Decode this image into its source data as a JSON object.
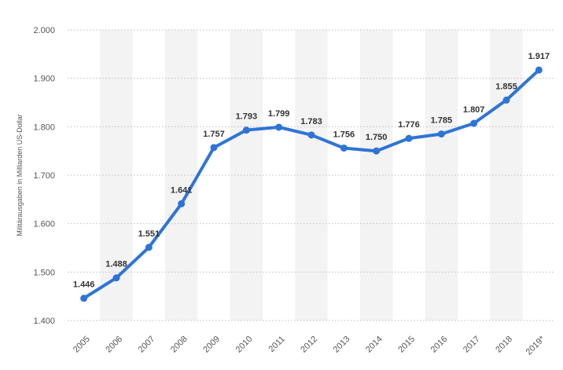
{
  "chart_data": {
    "type": "line",
    "ylabel": "Militärausgaben in Milliarden US-Dollar",
    "x": [
      "2005",
      "2006",
      "2007",
      "2008",
      "2009",
      "2010",
      "2011",
      "2012",
      "2013",
      "2014",
      "2015",
      "2016",
      "2017",
      "2018",
      "2019*"
    ],
    "values": [
      1446,
      1488,
      1551,
      1641,
      1757,
      1793,
      1799,
      1783,
      1756,
      1750,
      1776,
      1785,
      1807,
      1855,
      1917
    ],
    "data_labels": [
      "1.446",
      "1.488",
      "1.551",
      "1.641",
      "1.757",
      "1.793",
      "1.799",
      "1.783",
      "1.756",
      "1.750",
      "1.776",
      "1.785",
      "1.807",
      "1.855",
      "1.917"
    ],
    "ylim": [
      1400,
      2000
    ],
    "yticks": [
      1400,
      1500,
      1600,
      1700,
      1800,
      1900,
      2000
    ],
    "ytick_labels": [
      "1.400",
      "1.500",
      "1.600",
      "1.700",
      "1.800",
      "1.900",
      "2.000"
    ],
    "grid": true,
    "colors": {
      "line": "#2e74d6",
      "band": "#f3f3f3",
      "grid": "#bfbfbf"
    }
  }
}
